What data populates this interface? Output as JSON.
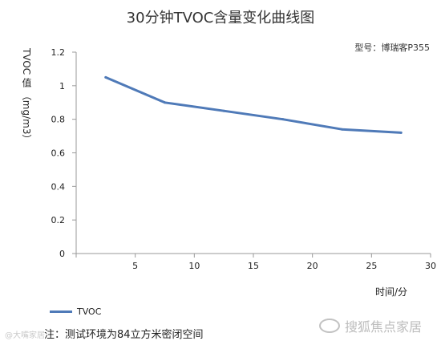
{
  "chart_data": {
    "type": "line",
    "title": "30分钟TVOC含量变化曲线图",
    "subtitle": "型号：博瑞客P355",
    "xlabel": "时间/分",
    "ylabel": "TVOC 值 （mg/m3）",
    "xlim": [
      0,
      30
    ],
    "ylim": [
      0,
      1.2
    ],
    "x_ticks": [
      "5",
      "10",
      "15",
      "20",
      "25",
      "30"
    ],
    "y_ticks": [
      "0",
      "0.2",
      "0.4",
      "0.6",
      "0.8",
      "1",
      "1.2"
    ],
    "legend": "bottom-left",
    "grid": false,
    "series": [
      {
        "name": "TVOC",
        "color": "#4f7ab8",
        "x": [
          2.5,
          7.5,
          12.5,
          17.5,
          22.5,
          27.5
        ],
        "values": [
          1.05,
          0.9,
          0.85,
          0.8,
          0.74,
          0.72
        ]
      }
    ]
  },
  "note": "注：测试环境为84立方米密闭空间",
  "watermark_left": "@大嘴家居",
  "watermark_right": "搜狐焦点家居"
}
